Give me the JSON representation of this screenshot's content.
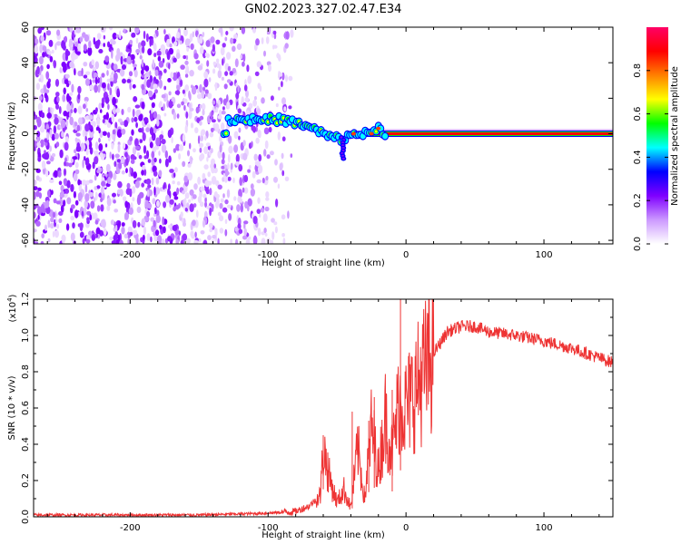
{
  "title": "GN02.2023.327.02.47.E34",
  "chart_data": [
    {
      "type": "heatmap",
      "xlabel": "Height of straight line (km)",
      "ylabel": "Frequency (Hz)",
      "xlim": [
        -270,
        150
      ],
      "ylim": [
        -62,
        60
      ],
      "xticks": [
        -200,
        -100,
        0,
        100
      ],
      "yticks": [
        -60,
        -40,
        -20,
        0,
        20,
        40,
        60
      ],
      "ytick_labels": [
        "-60",
        "-40",
        "-20",
        "0",
        "20",
        "40",
        "60"
      ],
      "colorbar": {
        "label": "Normalized spectral amplitude",
        "range": [
          0,
          1
        ],
        "ticks": [
          0.0,
          0.2,
          0.4,
          0.6,
          0.8
        ],
        "tick_labels": [
          "0.0",
          "0.2",
          "0.4",
          "0.6",
          "0.8"
        ],
        "colors": [
          "#ffffff",
          "#cc99ff",
          "#7f00ff",
          "#0000ff",
          "#00ffff",
          "#00ff00",
          "#ffff00",
          "#ff8000",
          "#ff0000",
          "#ff0066"
        ]
      },
      "features": {
        "noise_band_x": [
          -270,
          -82
        ],
        "noise_band_y": [
          -62,
          60
        ],
        "signal_track": [
          {
            "x": -130,
            "y": 8
          },
          {
            "x": -110,
            "y": 8
          },
          {
            "x": -90,
            "y": 8
          },
          {
            "x": -75,
            "y": 5
          },
          {
            "x": -65,
            "y": 2
          },
          {
            "x": -55,
            "y": -2
          },
          {
            "x": -45,
            "y": -3
          },
          {
            "x": -38,
            "y": 0
          },
          {
            "x": -25,
            "y": 0
          },
          {
            "x": -20,
            "y": 4
          },
          {
            "x": -15,
            "y": 0
          },
          {
            "x": 150,
            "y": 0
          }
        ],
        "carrier_start_x": -30,
        "carrier_freq": 0
      }
    },
    {
      "type": "line",
      "xlabel": "Height of straight line (km)",
      "ylabel": "SNR (10 * v/v)",
      "scale_label": "(x10",
      "scale_exponent": "4",
      "scale_close": ")",
      "color": "#ee3333",
      "xlim": [
        -270,
        150
      ],
      "ylim": [
        0,
        1.2
      ],
      "xticks": [
        -200,
        -100,
        0,
        100
      ],
      "yticks": [
        0.0,
        0.2,
        0.4,
        0.6,
        0.8,
        1.0,
        1.2
      ],
      "ytick_labels": [
        "0.0",
        "0.2",
        "0.4",
        "0.6",
        "0.8",
        "1.0",
        "1.2"
      ],
      "envelope": {
        "x": [
          -270,
          -150,
          -100,
          -80,
          -70,
          -62,
          -60,
          -55,
          -50,
          -45,
          -40,
          -35,
          -30,
          -25,
          -20,
          -15,
          -10,
          -5,
          0,
          10,
          20,
          30,
          40,
          50,
          60,
          80,
          100,
          120,
          150
        ],
        "y": [
          0.01,
          0.01,
          0.02,
          0.03,
          0.06,
          0.12,
          0.38,
          0.2,
          0.08,
          0.15,
          0.05,
          0.38,
          0.1,
          0.5,
          0.25,
          0.55,
          0.35,
          0.65,
          0.6,
          0.75,
          0.9,
          1.02,
          1.05,
          1.05,
          1.02,
          1.0,
          0.97,
          0.93,
          0.85
        ]
      },
      "spikes": [
        {
          "x": -60,
          "y": 0.45
        },
        {
          "x": -39,
          "y": 0.58
        },
        {
          "x": -27,
          "y": 0.53
        },
        {
          "x": -23,
          "y": 0.66
        },
        {
          "x": -10,
          "y": 0.7
        },
        {
          "x": -4,
          "y": 1.2
        }
      ]
    }
  ]
}
